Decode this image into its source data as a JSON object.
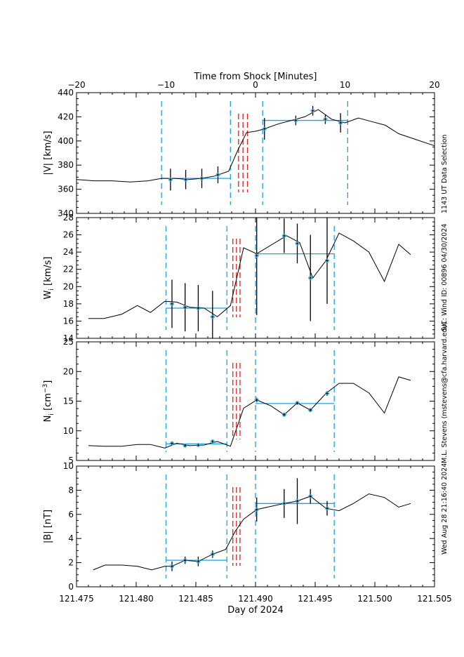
{
  "page": {
    "top_axis_title": "Time from Shock [Minutes]",
    "bottom_axis_title": "Day of 2024",
    "side_notes": [
      "1143 UT Data Selection",
      "S/C: Wind ID: 00896 04/30/2024",
      "M.L. Stevens (mstevens@cfa.harvard.edu)",
      "Wed Aug 28 21:16:40 2024"
    ]
  },
  "chart_data": {
    "type": "line",
    "x_axis": {
      "label": "Day of 2024",
      "range": [
        121.475,
        121.505
      ],
      "ticks": [
        121.475,
        121.48,
        121.485,
        121.49,
        121.495,
        121.5,
        121.505
      ],
      "tick_labels": [
        "121.475",
        "121.480",
        "121.485",
        "121.490",
        "121.495",
        "121.500",
        "121.505"
      ]
    },
    "top_axis": {
      "label": "Time from Shock [Minutes]",
      "range": [
        -20,
        20
      ],
      "ticks": [
        -20,
        -10,
        0,
        10,
        20
      ],
      "tick_labels": [
        "−20",
        "−10",
        "0",
        "10",
        "20"
      ]
    },
    "panels": [
      {
        "id": "velocity",
        "ylabel": "|V| [km/s]",
        "ylim": [
          340,
          440
        ],
        "y_ticks": [
          340,
          360,
          380,
          400,
          420,
          440
        ],
        "x_scale": "minutes",
        "series": {
          "x": [
            -20,
            -18,
            -16,
            -14,
            -12,
            -10.5,
            -9,
            -7.5,
            -6,
            -4.5,
            -3,
            -2,
            -1,
            0,
            1,
            2.5,
            4,
            5.5,
            7,
            8.5,
            10,
            11.5,
            13,
            14.5,
            16,
            18,
            20
          ],
          "y": [
            368,
            367,
            367,
            366,
            367,
            369,
            369,
            368,
            369,
            371,
            375,
            392,
            407,
            408,
            410,
            414,
            417,
            420,
            426,
            418,
            415,
            419,
            416,
            413,
            406,
            401,
            396
          ]
        },
        "measurements": [
          {
            "x": -9.5,
            "y": 368,
            "err": 9
          },
          {
            "x": -7.8,
            "y": 368,
            "err": 8
          },
          {
            "x": -6.0,
            "y": 369,
            "err": 8
          },
          {
            "x": -4.2,
            "y": 372,
            "err": 7
          },
          {
            "x": 1.0,
            "y": 410,
            "err": 9
          },
          {
            "x": 4.5,
            "y": 417,
            "err": 4
          },
          {
            "x": 6.4,
            "y": 425,
            "err": 4
          },
          {
            "x": 7.8,
            "y": 418,
            "err": 4
          },
          {
            "x": 9.5,
            "y": 415,
            "err": 8
          }
        ],
        "avg_segments": [
          {
            "x0": -10.5,
            "x1": -2.8,
            "y": 369
          },
          {
            "x0": 0.8,
            "x1": 10.3,
            "y": 417
          }
        ],
        "blue_lines": [
          -10.5,
          -2.8,
          0.8,
          10.3
        ],
        "red_lines": [
          -1.9,
          -1.4,
          -0.9
        ]
      },
      {
        "id": "thermal-speed",
        "ylabel": "W_i [km/s]",
        "ylim": [
          14,
          28
        ],
        "y_ticks": [
          14,
          16,
          18,
          20,
          22,
          24,
          26,
          28
        ],
        "series": {
          "x": [
            121.476,
            121.4773,
            121.4788,
            121.4801,
            121.4812,
            121.4824,
            121.4834,
            121.4845,
            121.4857,
            121.4868,
            121.4879,
            121.489,
            121.4901,
            121.4926,
            121.4937,
            121.4948,
            121.4959,
            121.497,
            121.4982,
            121.4995,
            121.5008,
            121.502,
            121.503
          ],
          "y": [
            16.3,
            16.3,
            16.8,
            17.8,
            17.0,
            18.3,
            18.2,
            17.6,
            17.5,
            16.5,
            17.8,
            24.5,
            23.8,
            25.9,
            25.1,
            21.0,
            23.0,
            26.2,
            25.3,
            24.0,
            20.6,
            24.9,
            23.7
          ]
        },
        "measurements": [
          {
            "x": 121.483,
            "y": 18.0,
            "err": 2.8
          },
          {
            "x": 121.4841,
            "y": 17.6,
            "err": 2.8
          },
          {
            "x": 121.4852,
            "y": 17.5,
            "err": 2.7
          },
          {
            "x": 121.4864,
            "y": 16.5,
            "err": 3.0
          },
          {
            "x": 121.4901,
            "y": 23.6,
            "err": 6.9
          },
          {
            "x": 121.4924,
            "y": 25.9,
            "err": 2.0
          },
          {
            "x": 121.4935,
            "y": 25.0,
            "err": 2.3
          },
          {
            "x": 121.4946,
            "y": 21.0,
            "err": 5.0
          },
          {
            "x": 121.496,
            "y": 23.0,
            "err": 5.0
          }
        ],
        "avg_segments": [
          {
            "x0": 121.4825,
            "x1": 121.4876,
            "y": 17.5
          },
          {
            "x0": 121.49,
            "x1": 121.4966,
            "y": 23.8
          }
        ],
        "blue_lines": [
          121.4825,
          121.4876,
          121.49,
          121.4966
        ],
        "red_lines": [
          121.4881,
          121.4884,
          121.4887
        ]
      },
      {
        "id": "density",
        "ylabel": "N_i [cm^-3]",
        "ylim": [
          5,
          25
        ],
        "y_ticks": [
          5,
          10,
          15,
          20,
          25
        ],
        "y_tick_labels": [
          "5",
          "10",
          "15",
          "20",
          "25"
        ],
        "series": {
          "x": [
            121.476,
            121.4773,
            121.4788,
            121.4801,
            121.4812,
            121.4824,
            121.4834,
            121.4845,
            121.4857,
            121.4868,
            121.4879,
            121.489,
            121.4901,
            121.4913,
            121.4924,
            121.4935,
            121.4946,
            121.4959,
            121.497,
            121.4982,
            121.4995,
            121.5008,
            121.502,
            121.503
          ],
          "y": [
            7.5,
            7.4,
            7.4,
            7.7,
            7.7,
            7.1,
            7.9,
            7.5,
            7.6,
            8.2,
            7.4,
            13.8,
            15.2,
            14.2,
            12.7,
            14.7,
            13.5,
            16.3,
            18.0,
            18.0,
            16.4,
            13.0,
            19.1,
            18.5
          ]
        },
        "measurements": [
          {
            "x": 121.483,
            "y": 7.9,
            "err": 0.3
          },
          {
            "x": 121.4841,
            "y": 7.5,
            "err": 0.3
          },
          {
            "x": 121.4852,
            "y": 7.6,
            "err": 0.3
          },
          {
            "x": 121.4864,
            "y": 8.2,
            "err": 0.3
          },
          {
            "x": 121.4901,
            "y": 15.2,
            "err": 0.4
          },
          {
            "x": 121.4924,
            "y": 12.7,
            "err": 0.3
          },
          {
            "x": 121.4935,
            "y": 14.7,
            "err": 0.3
          },
          {
            "x": 121.4946,
            "y": 13.5,
            "err": 0.3
          },
          {
            "x": 121.496,
            "y": 16.3,
            "err": 0.4
          }
        ],
        "avg_segments": [
          {
            "x0": 121.4825,
            "x1": 121.4876,
            "y": 7.8
          },
          {
            "x0": 121.49,
            "x1": 121.4966,
            "y": 14.6
          }
        ],
        "blue_lines": [
          121.4825,
          121.4876,
          121.49,
          121.4966
        ],
        "red_lines": [
          121.4881,
          121.4884,
          121.4887
        ]
      },
      {
        "id": "magnetic-field",
        "ylabel": "|B| [nT]",
        "ylim": [
          0,
          10
        ],
        "y_ticks": [
          0,
          2,
          4,
          6,
          8,
          10
        ],
        "series": {
          "x": [
            121.4764,
            121.4774,
            121.4788,
            121.4801,
            121.4813,
            121.4824,
            121.483,
            121.4841,
            121.4852,
            121.4864,
            121.4875,
            121.4883,
            121.489,
            121.4901,
            121.4924,
            121.4935,
            121.4946,
            121.4959,
            121.497,
            121.4982,
            121.4995,
            121.5008,
            121.502,
            121.503
          ],
          "y": [
            1.4,
            1.8,
            1.8,
            1.7,
            1.4,
            1.7,
            1.7,
            2.2,
            2.1,
            2.7,
            3.1,
            4.6,
            5.6,
            6.4,
            6.9,
            7.1,
            7.5,
            6.5,
            6.3,
            6.9,
            7.7,
            7.4,
            6.6,
            6.9
          ]
        },
        "measurements": [
          {
            "x": 121.483,
            "y": 1.7,
            "err": 0.4
          },
          {
            "x": 121.4841,
            "y": 2.2,
            "err": 0.3
          },
          {
            "x": 121.4852,
            "y": 2.1,
            "err": 0.4
          },
          {
            "x": 121.4864,
            "y": 2.7,
            "err": 0.3
          },
          {
            "x": 121.4901,
            "y": 6.4,
            "err": 1.0
          },
          {
            "x": 121.4924,
            "y": 6.9,
            "err": 1.2
          },
          {
            "x": 121.4935,
            "y": 7.1,
            "err": 1.9
          },
          {
            "x": 121.4946,
            "y": 7.5,
            "err": 0.6
          },
          {
            "x": 121.496,
            "y": 6.5,
            "err": 0.6
          }
        ],
        "avg_segments": [
          {
            "x0": 121.4825,
            "x1": 121.4876,
            "y": 2.2
          },
          {
            "x0": 121.49,
            "x1": 121.4966,
            "y": 6.9
          }
        ],
        "blue_lines": [
          121.4825,
          121.4876,
          121.49,
          121.4966
        ],
        "red_lines": [
          121.4881,
          121.4884,
          121.4887
        ]
      }
    ]
  }
}
